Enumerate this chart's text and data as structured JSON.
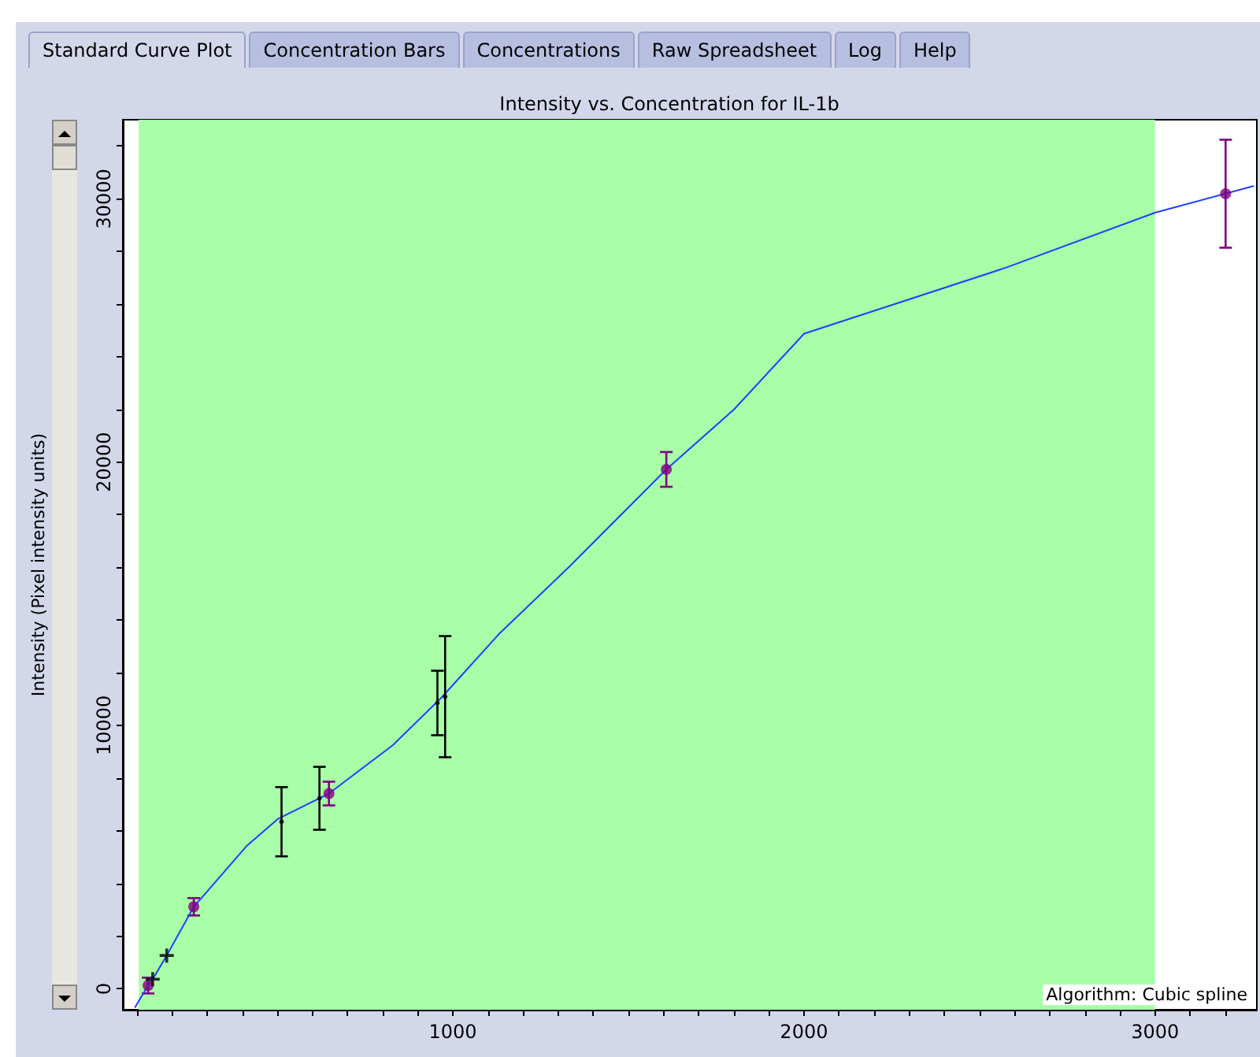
{
  "chart_data": {
    "type": "scatter",
    "title": "Intensity vs. Concentration for IL-1b",
    "ylabel": "Intensity (Pixel intensity units)",
    "annotations": [
      "Standard Curve Plot",
      "Concentration Bars",
      "Concentrations",
      "Raw Spreadsheet",
      "Log",
      "Help",
      "Algorithm: Cubic spline"
    ],
    "xlim": [
      60,
      3290
    ],
    "ylim": [
      -800,
      33000
    ],
    "xticks": [
      {
        "value": 100,
        "label": null
      },
      {
        "value": 200,
        "label": null
      },
      {
        "value": 300,
        "label": null
      },
      {
        "value": 400,
        "label": null
      },
      {
        "value": 500,
        "label": null
      },
      {
        "value": 600,
        "label": null
      },
      {
        "value": 700,
        "label": null
      },
      {
        "value": 800,
        "label": null
      },
      {
        "value": 900,
        "label": null
      },
      1000,
      {
        "value": 1100,
        "label": null
      },
      {
        "value": 1200,
        "label": null
      },
      {
        "value": 1300,
        "label": null
      },
      {
        "value": 1400,
        "label": null
      },
      {
        "value": 1500,
        "label": null
      },
      {
        "value": 1600,
        "label": null
      },
      {
        "value": 1700,
        "label": null
      },
      {
        "value": 1800,
        "label": null
      },
      {
        "value": 1900,
        "label": null
      },
      2000,
      {
        "value": 2100,
        "label": null
      },
      {
        "value": 2200,
        "label": null
      },
      {
        "value": 2300,
        "label": null
      },
      {
        "value": 2400,
        "label": null
      },
      {
        "value": 2500,
        "label": null
      },
      {
        "value": 2600,
        "label": null
      },
      {
        "value": 2700,
        "label": null
      },
      {
        "value": 2800,
        "label": null
      },
      {
        "value": 2900,
        "label": null
      },
      3000,
      {
        "value": 3100,
        "label": null
      },
      {
        "value": 3200,
        "label": null
      }
    ],
    "yticks": [
      0,
      {
        "value": 2000,
        "label": null
      },
      {
        "value": 4000,
        "label": null
      },
      {
        "value": 6000,
        "label": null
      },
      {
        "value": 8000,
        "label": null
      },
      10000,
      {
        "value": 12000,
        "label": null
      },
      {
        "value": 14000,
        "label": null
      },
      {
        "value": 16000,
        "label": null
      },
      {
        "value": 18000,
        "label": null
      },
      20000,
      {
        "value": 22000,
        "label": null
      },
      {
        "value": 24000,
        "label": null
      },
      {
        "value": 26000,
        "label": null
      },
      {
        "value": 28000,
        "label": null
      },
      30000,
      {
        "value": 32000,
        "label": null
      }
    ],
    "bands": [
      {
        "axis": "x",
        "from": 105,
        "to": 3000,
        "color": "#a8ffa8"
      }
    ],
    "series": [
      {
        "type": "line",
        "color": "#1f3fff",
        "marker": "none",
        "x": [
          95,
          132,
          145,
          185,
          262,
          414,
          503,
          647,
          830,
          968,
          1130,
          1331,
          1608,
          1801,
          2000,
          2575,
          3000,
          3280
        ],
        "values": [
          -700,
          120,
          360,
          1260,
          3110,
          5440,
          6460,
          7410,
          9260,
          11060,
          13450,
          16020,
          19720,
          22000,
          24870,
          27380,
          29470,
          30480
        ]
      },
      {
        "color": "#800080",
        "marker": "circle",
        "x": [
          132,
          262,
          647,
          1608,
          3201
        ],
        "values": [
          120,
          3110,
          7410,
          19720,
          30190
        ],
        "errors": [
          300,
          330,
          450,
          660,
          2050
        ]
      },
      {
        "color": "#000000",
        "marker": "cross",
        "x": [
          145,
          185
        ],
        "values": [
          360,
          1260
        ]
      },
      {
        "color": "#000000",
        "marker": "none",
        "x": [
          512,
          620,
          956,
          978
        ],
        "values": [
          6340,
          7230,
          10850,
          11090
        ],
        "errors": [
          1315,
          1195,
          1225,
          2300
        ]
      }
    ]
  }
}
